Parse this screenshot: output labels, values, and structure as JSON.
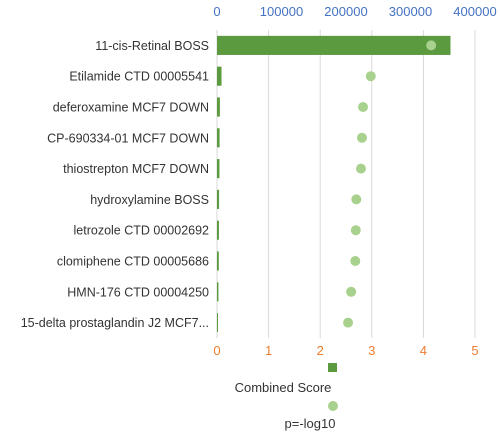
{
  "chart_data": {
    "type": "bar",
    "categories": [
      "11-cis-Retinal BOSS",
      "Etilamide CTD 00005541",
      "deferoxamine MCF7 DOWN",
      "CP-690334-01 MCF7 DOWN",
      "thiostrepton MCF7 DOWN",
      "hydroxylamine BOSS",
      "letrozole CTD 00002692",
      "clomiphene CTD 00005686",
      "HMN-176 CTD 00004250",
      "15-delta prostaglandin J2 MCF7..."
    ],
    "series": [
      {
        "name": "Combined Score",
        "kind": "bar",
        "axis": "top",
        "color": "#5b9a3f",
        "values": [
          362000,
          7000,
          4500,
          4000,
          3800,
          3200,
          3000,
          2800,
          2200,
          1500
        ]
      },
      {
        "name": "p=-log10",
        "kind": "scatter",
        "axis": "bottom",
        "color": "#a9d18e",
        "values": [
          4.15,
          2.98,
          2.83,
          2.81,
          2.79,
          2.7,
          2.69,
          2.68,
          2.6,
          2.54
        ]
      }
    ],
    "x_top": {
      "min": 0,
      "max": 400000,
      "ticks": [
        "0",
        "100000",
        "200000",
        "300000",
        "400000"
      ],
      "tick_values": [
        0,
        100000,
        200000,
        300000,
        400000
      ],
      "color": "#4472c4"
    },
    "x_bottom": {
      "min": 0,
      "max": 5,
      "ticks": [
        "0",
        "1",
        "2",
        "3",
        "4",
        "5"
      ],
      "tick_values": [
        0,
        1,
        2,
        3,
        4,
        5
      ],
      "color": "#ed7d31"
    },
    "grid": true,
    "legend": {
      "position": "bottom",
      "items": [
        "Combined Score",
        "p=-log10"
      ]
    }
  }
}
